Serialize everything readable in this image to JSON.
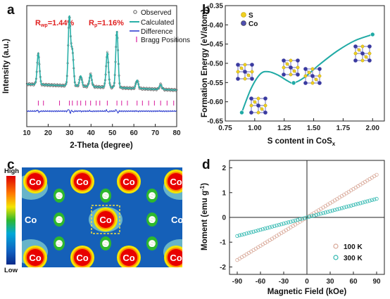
{
  "panels": {
    "a": {
      "label": "a",
      "xlabel": "2-Theta (degree)",
      "ylabel": "Intensity (a.u.)",
      "xticks": [
        "10",
        "20",
        "30",
        "40",
        "50",
        "60",
        "70",
        "80"
      ],
      "rwp": "R",
      "rwp_sub": "wp",
      "rwp_val": "=1.44%",
      "rp": "R",
      "rp_sub": "p",
      "rp_val": "=1.16%",
      "legend": [
        "Observed",
        "Calculated",
        "Difference",
        "Bragg Positions"
      ],
      "colors": {
        "observed": "#555555",
        "calculated": "#2ab0a8",
        "difference": "#2233cc",
        "bragg": "#d81b9c",
        "rfactor": "#e02020"
      }
    },
    "b": {
      "label": "b",
      "xlabel_main": "S content in CoS",
      "xlabel_sub": "x",
      "ylabel": "Formation Energy (eV/atom)",
      "xticks": [
        "0.75",
        "1.00",
        "1.25",
        "1.50",
        "1.75",
        "2.00"
      ],
      "yticks": [
        "-0.35",
        "-0.40",
        "-0.45",
        "-0.50",
        "-0.55",
        "-0.60",
        "-0.65"
      ],
      "legend": [
        "S",
        "Co"
      ],
      "colors": {
        "curve": "#20aaa5",
        "s_atom": "#f0d020",
        "co_atom": "#3a3aa0"
      }
    },
    "c": {
      "label": "c",
      "cbar_high": "High",
      "cbar_low": "Low",
      "atom_labels": {
        "co": "Co",
        "s": "S"
      }
    },
    "d": {
      "label": "d",
      "xlabel": "Magnetic Field (kOe)",
      "ylabel_main": "Moment (emu g",
      "ylabel_sup": "-1",
      "ylabel_end": ")",
      "xticks": [
        "-90",
        "-60",
        "-30",
        "0",
        "30",
        "60",
        "90"
      ],
      "yticks": [
        "2",
        "1",
        "0",
        "-1",
        "-2"
      ],
      "legend": [
        "100 K",
        "300 K"
      ],
      "colors": {
        "100K": "#d8a898",
        "300K": "#30b8b0"
      }
    }
  },
  "chart_data": [
    {
      "type": "line",
      "panel": "a",
      "xlabel": "2-Theta (degree)",
      "ylabel": "Intensity (a.u.)",
      "xlim": [
        10,
        80
      ],
      "peaks_2theta": [
        15.4,
        29.9,
        31.3,
        35.2,
        39.8,
        47.6,
        52.1,
        61.5,
        72.5
      ],
      "peak_rel_intensity": [
        0.45,
        1.0,
        0.5,
        0.15,
        0.18,
        0.5,
        0.82,
        0.12,
        0.07
      ],
      "bragg_positions": [
        15.4,
        17.8,
        25.3,
        29.9,
        31.3,
        33.6,
        35.2,
        37.5,
        39.8,
        42.4,
        44.1,
        47.6,
        52.1,
        54.3,
        57.0,
        61.5,
        64.0,
        66.9,
        69.6,
        72.5,
        75.5,
        78.6
      ],
      "series": [
        {
          "name": "Observed"
        },
        {
          "name": "Calculated"
        },
        {
          "name": "Difference"
        },
        {
          "name": "Bragg Positions"
        }
      ]
    },
    {
      "type": "line",
      "panel": "b",
      "xlabel": "S content in CoSx",
      "ylabel": "Formation Energy (eV/atom)",
      "xlim": [
        0.75,
        2.1
      ],
      "ylim": [
        -0.65,
        -0.35
      ],
      "points": [
        {
          "x": 0.89,
          "y": -0.628
        },
        {
          "x": 1.33,
          "y": -0.551
        },
        {
          "x": 2.0,
          "y": -0.425
        }
      ],
      "curve": [
        {
          "x": 0.89,
          "y": -0.628
        },
        {
          "x": 0.97,
          "y": -0.565
        },
        {
          "x": 1.05,
          "y": -0.527
        },
        {
          "x": 1.12,
          "y": -0.522
        },
        {
          "x": 1.2,
          "y": -0.531
        },
        {
          "x": 1.28,
          "y": -0.546
        },
        {
          "x": 1.33,
          "y": -0.551
        },
        {
          "x": 1.42,
          "y": -0.537
        },
        {
          "x": 1.55,
          "y": -0.503
        },
        {
          "x": 1.7,
          "y": -0.468
        },
        {
          "x": 1.85,
          "y": -0.441
        },
        {
          "x": 2.0,
          "y": -0.425
        }
      ]
    },
    {
      "type": "scatter",
      "panel": "d",
      "xlabel": "Magnetic Field (kOe)",
      "ylabel": "Moment (emu g-1)",
      "xlim": [
        -100,
        100
      ],
      "ylim": [
        -2.3,
        2.3
      ],
      "series": [
        {
          "name": "100 K",
          "x": [
            -90,
            90
          ],
          "y": [
            -1.72,
            1.72
          ]
        },
        {
          "name": "300 K",
          "x": [
            -90,
            90
          ],
          "y": [
            -0.75,
            0.75
          ]
        }
      ]
    }
  ]
}
